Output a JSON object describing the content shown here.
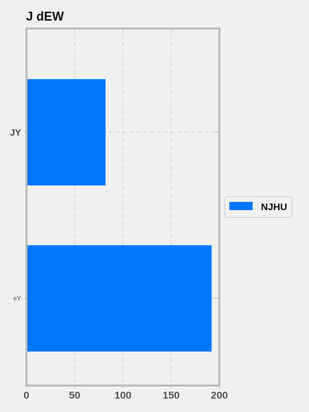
{
  "chart_data": {
    "type": "bar",
    "orientation": "horizontal",
    "title": "J dEW",
    "xlabel": "",
    "ylabel": "",
    "categories": [
      "JY",
      "eY"
    ],
    "series": [
      {
        "name": "NJHU",
        "values": [
          82,
          192
        ],
        "color": "#0077ff"
      }
    ],
    "xlim": [
      0,
      200
    ],
    "xticks": [
      0,
      50,
      100,
      150,
      200
    ],
    "grid": true,
    "legend": "right"
  }
}
